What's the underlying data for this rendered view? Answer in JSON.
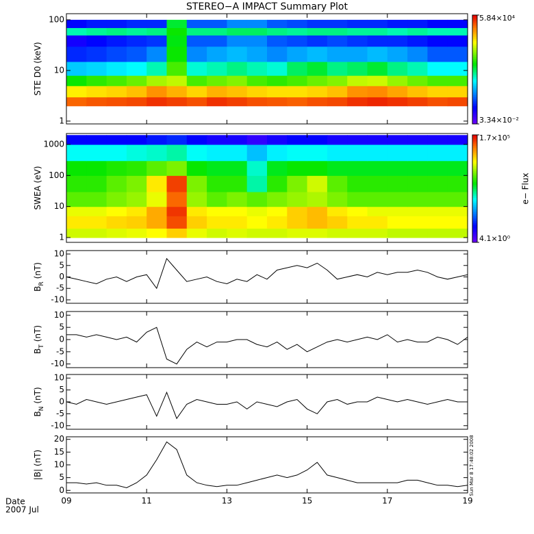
{
  "chart_data": [
    {
      "type": "heatmap",
      "title": "STEREO−A IMPACT Summary Plot",
      "ylabel": "STE D0 (keV)",
      "log_y": true,
      "xlim": [
        9,
        19
      ],
      "ylim": [
        0.88,
        132
      ],
      "yticks": [
        1,
        10,
        100
      ],
      "x_edges": [
        9,
        9.5,
        10,
        10.5,
        11,
        11.5,
        12,
        12.5,
        13,
        13.5,
        14,
        14.5,
        15,
        15.5,
        16,
        16.5,
        17,
        17.5,
        18,
        18.5,
        19
      ],
      "y_edges": [
        2,
        3,
        5,
        8,
        15,
        30,
        50,
        70,
        100
      ],
      "z": [
        [
          15000,
          18000,
          20000,
          22000,
          30000,
          25000,
          20000,
          30000,
          25000,
          20000,
          18000,
          16000,
          20000,
          22000,
          30000,
          35000,
          30000,
          25000,
          20000,
          22000
        ],
        [
          2000,
          2500,
          3000,
          4000,
          8000,
          5000,
          3000,
          5000,
          4000,
          3000,
          2500,
          2500,
          3000,
          4000,
          8000,
          9000,
          6000,
          4000,
          3000,
          3000
        ],
        [
          100,
          150,
          200,
          300,
          600,
          800,
          200,
          300,
          400,
          200,
          150,
          200,
          300,
          400,
          800,
          900,
          500,
          300,
          200,
          200
        ],
        [
          5,
          6,
          8,
          10,
          20,
          200,
          15,
          20,
          30,
          20,
          15,
          40,
          60,
          30,
          40,
          60,
          30,
          20,
          10,
          10
        ],
        [
          0.5,
          0.6,
          0.8,
          1,
          2,
          100,
          2,
          3,
          4,
          3,
          2,
          3,
          4,
          3,
          3,
          4,
          3,
          2,
          1,
          1
        ],
        [
          0.2,
          0.3,
          0.4,
          0.5,
          0.6,
          80,
          1,
          1,
          2,
          2,
          1,
          0.8,
          0.6,
          0.8,
          0.6,
          0.5,
          0.5,
          0.4,
          0.3,
          0.3
        ],
        [
          20,
          25,
          30,
          25,
          30,
          100,
          30,
          30,
          40,
          40,
          30,
          25,
          30,
          30,
          25,
          25,
          20,
          25,
          20,
          20
        ],
        [
          0.3,
          0.4,
          0.4,
          0.5,
          0.5,
          60,
          1,
          1,
          2,
          2,
          1,
          0.8,
          0.6,
          0.6,
          0.5,
          0.5,
          0.4,
          0.4,
          0.3,
          0.3
        ]
      ],
      "zlim": [
        0.0334,
        58400
      ],
      "zticks": [
        {
          "value": 0.0334,
          "label": "3.34×10⁻²"
        },
        {
          "value": 58400,
          "label": "5.84×10⁴"
        }
      ]
    },
    {
      "type": "heatmap",
      "ylabel": "SWEA (eV)",
      "zlabel": "e− Flux",
      "log_y": true,
      "xlim": [
        9,
        19
      ],
      "ylim": [
        0.7,
        2245
      ],
      "yticks": [
        1,
        10,
        100,
        1000
      ],
      "x_edges": [
        9,
        9.5,
        10,
        10.5,
        11,
        11.5,
        12,
        12.5,
        13,
        13.5,
        14,
        14.5,
        15,
        15.5,
        16,
        16.5,
        17,
        17.5,
        18,
        18.5,
        19
      ],
      "y_edges": [
        1,
        2,
        5,
        10,
        30,
        100,
        300,
        1000,
        2000
      ],
      "z": [
        [
          8000,
          8000,
          9000,
          10000,
          12000,
          20000,
          10000,
          8000,
          9000,
          8000,
          8000,
          9000,
          9000,
          8000,
          8000,
          8000,
          7000,
          7000,
          7000,
          7000
        ],
        [
          15000,
          15000,
          18000,
          20000,
          30000,
          80000,
          20000,
          15000,
          15000,
          12000,
          15000,
          20000,
          25000,
          20000,
          15000,
          15000,
          12000,
          12000,
          12000,
          12000
        ],
        [
          10000,
          10000,
          12000,
          15000,
          30000,
          100000,
          15000,
          12000,
          12000,
          10000,
          12000,
          20000,
          25000,
          15000,
          12000,
          10000,
          10000,
          10000,
          10000,
          10000
        ],
        [
          3000,
          3000,
          4000,
          5000,
          10000,
          60000,
          5000,
          3000,
          4000,
          3000,
          4000,
          5000,
          6000,
          4000,
          3000,
          3000,
          3000,
          3000,
          3000,
          3000
        ],
        [
          2000,
          2000,
          3000,
          4000,
          15000,
          90000,
          4000,
          2000,
          2000,
          500,
          2000,
          4000,
          8000,
          3000,
          2000,
          2000,
          2000,
          2000,
          2000,
          2000
        ],
        [
          1500,
          1500,
          1800,
          2000,
          3000,
          4000,
          1500,
          1200,
          1200,
          400,
          1200,
          1500,
          1500,
          1200,
          1200,
          1200,
          1200,
          1200,
          1200,
          1200
        ],
        [
          300,
          300,
          300,
          350,
          400,
          500,
          300,
          250,
          250,
          150,
          250,
          300,
          300,
          250,
          250,
          250,
          250,
          250,
          250,
          250
        ],
        [
          20,
          20,
          20,
          20,
          25,
          30,
          20,
          15,
          15,
          10,
          15,
          20,
          20,
          15,
          15,
          15,
          15,
          15,
          15,
          15
        ]
      ],
      "zlim": [
        4.1,
        170000
      ],
      "zticks": [
        {
          "value": 4.1,
          "label": "4.1×10⁰"
        },
        {
          "value": 170000,
          "label": "1.7×10⁵"
        }
      ]
    },
    {
      "type": "line",
      "ylabel": "B",
      "ylabel_sub": "R",
      "ylabel_unit": "(nT)",
      "color": "#000000",
      "xlim": [
        9,
        19
      ],
      "ylim": [
        -11.5,
        11.5
      ],
      "yticks": [
        -10,
        -5,
        0,
        5,
        10
      ],
      "x": [
        9,
        9.25,
        9.5,
        9.75,
        10,
        10.25,
        10.5,
        10.75,
        11,
        11.25,
        11.5,
        11.75,
        12,
        12.25,
        12.5,
        12.75,
        13,
        13.25,
        13.5,
        13.75,
        14,
        14.25,
        14.5,
        14.75,
        15,
        15.25,
        15.5,
        15.75,
        16,
        16.25,
        16.5,
        16.75,
        17,
        17.25,
        17.5,
        17.75,
        18,
        18.25,
        18.5,
        18.75,
        19
      ],
      "values": [
        0,
        -1,
        -2,
        -3,
        -1,
        0,
        -2,
        0,
        1,
        -5,
        8,
        3,
        -2,
        -1,
        0,
        -2,
        -3,
        -1,
        -2,
        1,
        -1,
        3,
        4,
        5,
        4,
        6,
        3,
        -1,
        0,
        1,
        0,
        2,
        1,
        2,
        2,
        3,
        2,
        0,
        -1,
        0,
        1
      ]
    },
    {
      "type": "line",
      "ylabel": "B",
      "ylabel_sub": "T",
      "ylabel_unit": "(nT)",
      "color": "#000000",
      "xlim": [
        9,
        19
      ],
      "ylim": [
        -11.5,
        11.5
      ],
      "yticks": [
        -10,
        -5,
        0,
        5,
        10
      ],
      "x": [
        9,
        9.25,
        9.5,
        9.75,
        10,
        10.25,
        10.5,
        10.75,
        11,
        11.25,
        11.5,
        11.75,
        12,
        12.25,
        12.5,
        12.75,
        13,
        13.25,
        13.5,
        13.75,
        14,
        14.25,
        14.5,
        14.75,
        15,
        15.25,
        15.5,
        15.75,
        16,
        16.25,
        16.5,
        16.75,
        17,
        17.25,
        17.5,
        17.75,
        18,
        18.25,
        18.5,
        18.75,
        19
      ],
      "values": [
        2,
        2,
        1,
        2,
        1,
        0,
        1,
        -1,
        3,
        5,
        -8,
        -10,
        -4,
        -1,
        -3,
        -1,
        -1,
        0,
        0,
        -2,
        -3,
        -1,
        -4,
        -2,
        -5,
        -3,
        -1,
        0,
        -1,
        0,
        1,
        0,
        2,
        -1,
        0,
        -1,
        -1,
        1,
        0,
        -2,
        1
      ]
    },
    {
      "type": "line",
      "ylabel": "B",
      "ylabel_sub": "N",
      "ylabel_unit": "(nT)",
      "color": "#000000",
      "xlim": [
        9,
        19
      ],
      "ylim": [
        -11.5,
        11.5
      ],
      "yticks": [
        -10,
        -5,
        0,
        5,
        10
      ],
      "x": [
        9,
        9.25,
        9.5,
        9.75,
        10,
        10.25,
        10.5,
        10.75,
        11,
        11.25,
        11.5,
        11.75,
        12,
        12.25,
        12.5,
        12.75,
        13,
        13.25,
        13.5,
        13.75,
        14,
        14.25,
        14.5,
        14.75,
        15,
        15.25,
        15.5,
        15.75,
        16,
        16.25,
        16.5,
        16.75,
        17,
        17.25,
        17.5,
        17.75,
        18,
        18.25,
        18.5,
        18.75,
        19
      ],
      "values": [
        0,
        -1,
        1,
        0,
        -1,
        0,
        1,
        2,
        3,
        -6,
        4,
        -7,
        -1,
        1,
        0,
        -1,
        -1,
        0,
        -3,
        0,
        -1,
        -2,
        0,
        1,
        -3,
        -5,
        0,
        1,
        -1,
        0,
        0,
        2,
        1,
        0,
        1,
        0,
        -1,
        0,
        1,
        0,
        0
      ]
    },
    {
      "type": "line",
      "ylabel": "|B| (nT)",
      "color": "#000000",
      "xlim": [
        9,
        19
      ],
      "ylim": [
        -1,
        21
      ],
      "yticks": [
        0,
        5,
        10,
        15,
        20
      ],
      "x": [
        9,
        9.25,
        9.5,
        9.75,
        10,
        10.25,
        10.5,
        10.75,
        11,
        11.25,
        11.5,
        11.75,
        12,
        12.25,
        12.5,
        12.75,
        13,
        13.25,
        13.5,
        13.75,
        14,
        14.25,
        14.5,
        14.75,
        15,
        15.25,
        15.5,
        15.75,
        16,
        16.25,
        16.5,
        16.75,
        17,
        17.25,
        17.5,
        17.75,
        18,
        18.25,
        18.5,
        18.75,
        19
      ],
      "values": [
        3,
        3,
        2.5,
        3,
        2,
        2,
        1,
        3,
        6,
        12,
        19,
        16,
        6,
        3,
        2,
        1.5,
        2,
        2,
        3,
        4,
        5,
        6,
        5,
        6,
        8,
        11,
        6,
        5,
        4,
        3,
        3,
        3,
        3,
        3,
        4,
        4,
        3,
        2,
        2,
        1.5,
        2
      ],
      "xticks": [
        {
          "value": 9,
          "label": "09"
        },
        11,
        13,
        15,
        17,
        19
      ],
      "xlabel": "Date",
      "xlabel2": "2007 Jul",
      "annotation": "Sun Mar  8 17:48:02 2008"
    }
  ]
}
